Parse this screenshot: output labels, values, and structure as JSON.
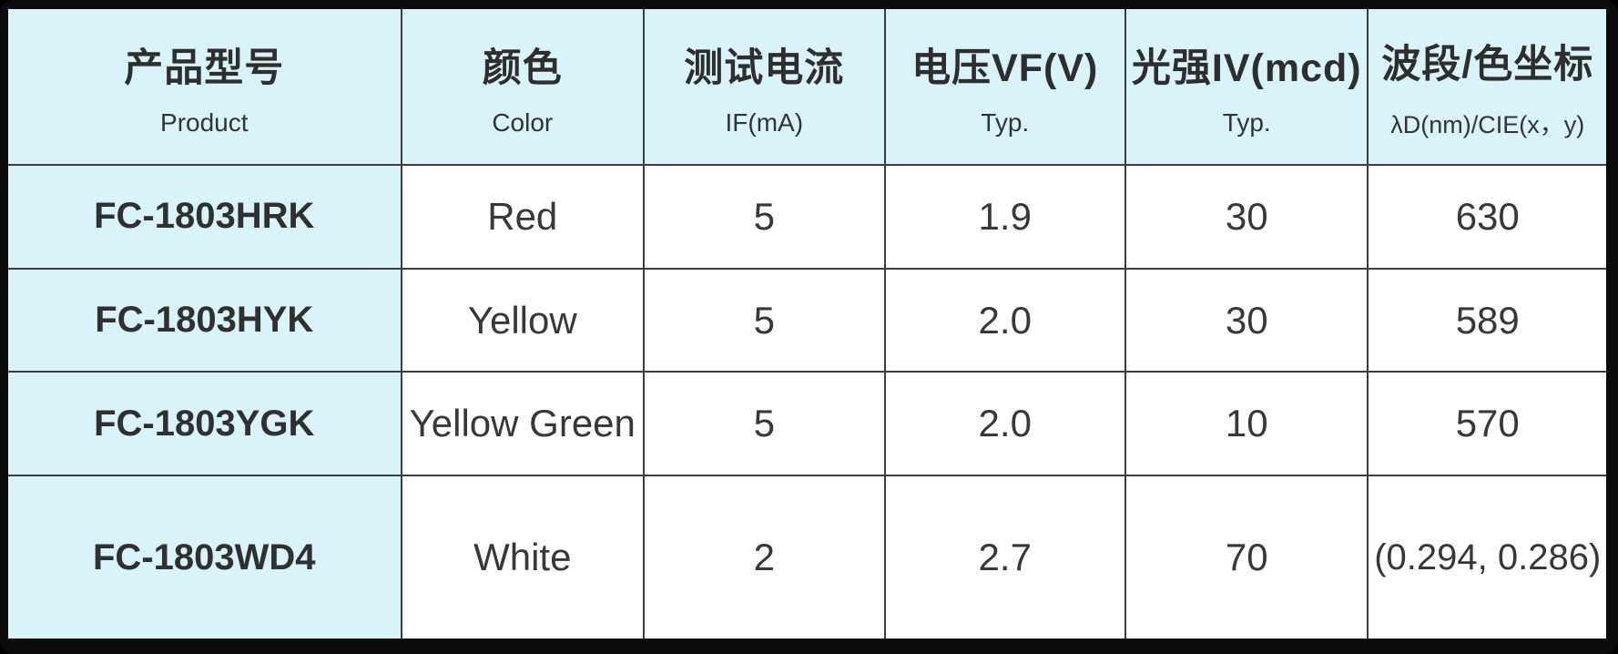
{
  "table": {
    "title_semantic": "LED product specification table",
    "colors": {
      "header_bg": "#d9f3fa",
      "cell_bg": "#ffffff",
      "grid_line": "#3d3d3d",
      "frame": "#0b0b0b",
      "text": "#383838"
    },
    "columns": [
      {
        "zh": "产品型号",
        "en": "Product"
      },
      {
        "zh": "颜色",
        "en": "Color"
      },
      {
        "zh": "测试电流",
        "en": "IF(mA)"
      },
      {
        "zh": "电压VF(V)",
        "en": "Typ."
      },
      {
        "zh": "光强IV(mcd)",
        "en": "Typ."
      },
      {
        "zh": "波段/色坐标",
        "en": "λD(nm)/CIE(x，y)"
      }
    ],
    "rows": [
      {
        "product": "FC-1803HRK",
        "color": "Red",
        "if_ma": "5",
        "vf_v": "1.9",
        "iv_mcd": "30",
        "wavelength": "630"
      },
      {
        "product": "FC-1803HYK",
        "color": "Yellow",
        "if_ma": "5",
        "vf_v": "2.0",
        "iv_mcd": "30",
        "wavelength": "589"
      },
      {
        "product": "FC-1803YGK",
        "color": "Yellow Green",
        "if_ma": "5",
        "vf_v": "2.0",
        "iv_mcd": "10",
        "wavelength": "570"
      },
      {
        "product": "FC-1803WD4",
        "color": "White",
        "if_ma": "2",
        "vf_v": "2.7",
        "iv_mcd": "70",
        "wavelength": "(0.294, 0.286)"
      }
    ]
  }
}
